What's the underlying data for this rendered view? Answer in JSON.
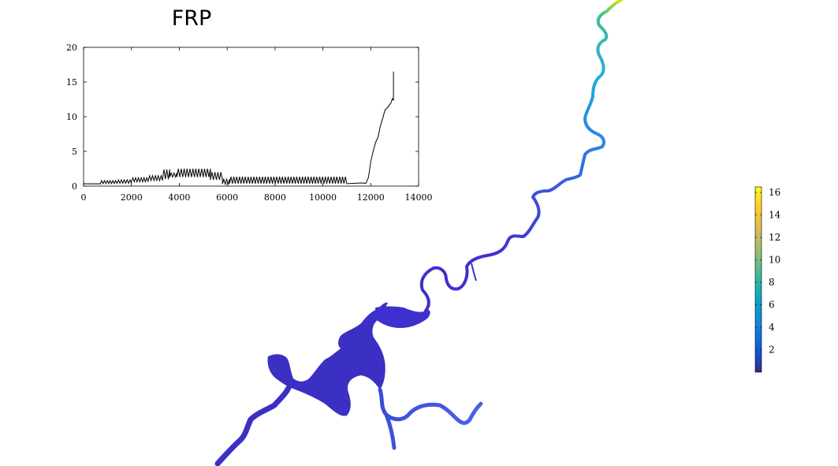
{
  "title": "FRP",
  "chart_data": {
    "type": "line",
    "title": "FRP",
    "xlim": [
      0,
      14000
    ],
    "ylim": [
      0,
      20
    ],
    "xticks": [
      0,
      2000,
      4000,
      6000,
      8000,
      10000,
      12000,
      14000
    ],
    "yticks": [
      0,
      5,
      10,
      15,
      20
    ],
    "xlabel": "",
    "ylabel": "",
    "grid": false,
    "series": [
      {
        "color": "#000000",
        "segments": [
          {
            "x_start": 0,
            "x_end": 700,
            "low": 0.3,
            "high": 0.35
          },
          {
            "x_start": 700,
            "x_end": 1400,
            "low": 0.35,
            "high": 0.8
          },
          {
            "x_start": 1400,
            "x_end": 2000,
            "low": 0.4,
            "high": 0.9
          },
          {
            "x_start": 2000,
            "x_end": 2700,
            "low": 0.6,
            "high": 1.2
          },
          {
            "x_start": 2700,
            "x_end": 3300,
            "low": 0.8,
            "high": 1.5
          },
          {
            "x_start": 3300,
            "x_end": 3600,
            "low": 1.0,
            "high": 2.4
          },
          {
            "x_start": 3600,
            "x_end": 3900,
            "low": 1.3,
            "high": 1.9
          },
          {
            "x_start": 3900,
            "x_end": 5300,
            "low": 1.3,
            "high": 2.5
          },
          {
            "x_start": 5300,
            "x_end": 5800,
            "low": 0.9,
            "high": 2.0
          },
          {
            "x_start": 5800,
            "x_end": 6100,
            "low": 0.3,
            "high": 1.0
          },
          {
            "x_start": 6100,
            "x_end": 11000,
            "low": 0.35,
            "high": 1.35
          }
        ],
        "tail": [
          [
            11000,
            0.35
          ],
          [
            11300,
            0.4
          ],
          [
            11600,
            0.45
          ],
          [
            11800,
            0.4
          ],
          [
            11900,
            1.2
          ],
          [
            12000,
            3.5
          ],
          [
            12100,
            5.0
          ],
          [
            12200,
            6.3
          ],
          [
            12300,
            7.0
          ],
          [
            12400,
            8.6
          ],
          [
            12500,
            9.8
          ],
          [
            12600,
            11.0
          ],
          [
            12700,
            11.3
          ],
          [
            12800,
            11.8
          ],
          [
            12850,
            12.0
          ],
          [
            12900,
            12.6
          ],
          [
            12950,
            12.4
          ],
          [
            12950,
            16.5
          ]
        ]
      }
    ],
    "map": {
      "colormap": "parula",
      "clim": [
        0,
        16.5
      ],
      "colorbar_ticks": [
        2,
        4,
        6,
        8,
        10,
        12,
        14,
        16
      ]
    }
  },
  "colors": {
    "low": "#3d2fc9",
    "high": "#f9fb0e"
  }
}
